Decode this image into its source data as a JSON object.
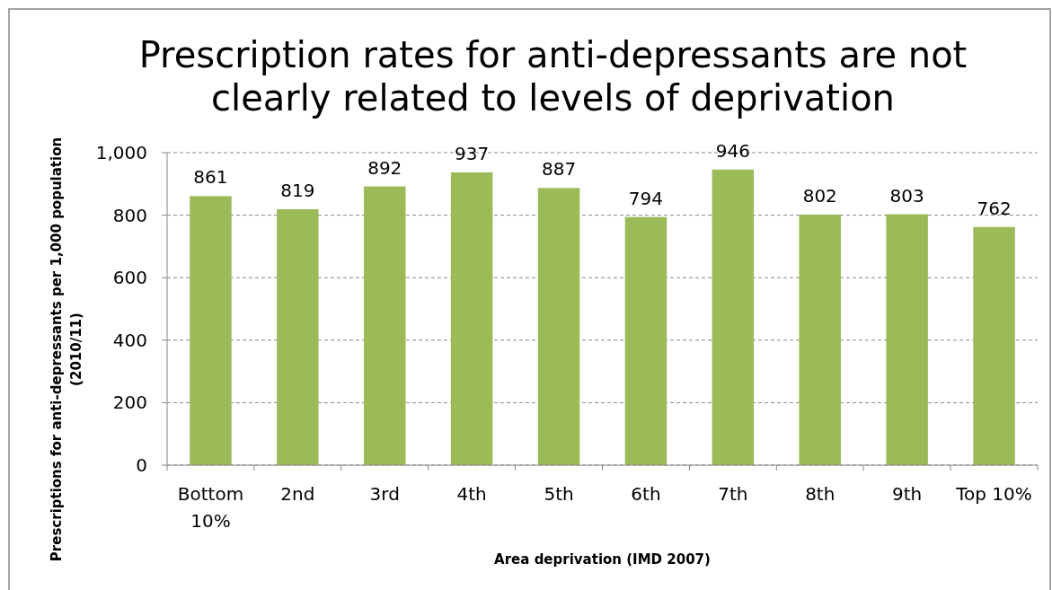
{
  "chart_data": {
    "type": "bar",
    "title": "Prescription rates for anti-depressants are not clearly related to levels of deprivation",
    "xlabel": "Area deprivation (IMD 2007)",
    "ylabel": "Prescriptions for anti-depressants per 1,000 population (2010/11)",
    "categories": [
      "Bottom 10%",
      "2nd",
      "3rd",
      "4th",
      "5th",
      "6th",
      "7th",
      "8th",
      "9th",
      "Top 10%"
    ],
    "values": [
      861,
      819,
      892,
      937,
      887,
      794,
      946,
      802,
      803,
      762
    ],
    "color": "#9bbb59",
    "ylim": [
      0,
      1000
    ],
    "yticks": [
      0,
      {
        "value": 200,
        "label": "200"
      },
      {
        "value": 400,
        "label": "400"
      },
      {
        "value": 600,
        "label": "600"
      },
      {
        "value": 800,
        "label": "800"
      },
      {
        "value": 1000,
        "label": "1,000"
      }
    ],
    "grid": "y",
    "data_labels": true
  }
}
